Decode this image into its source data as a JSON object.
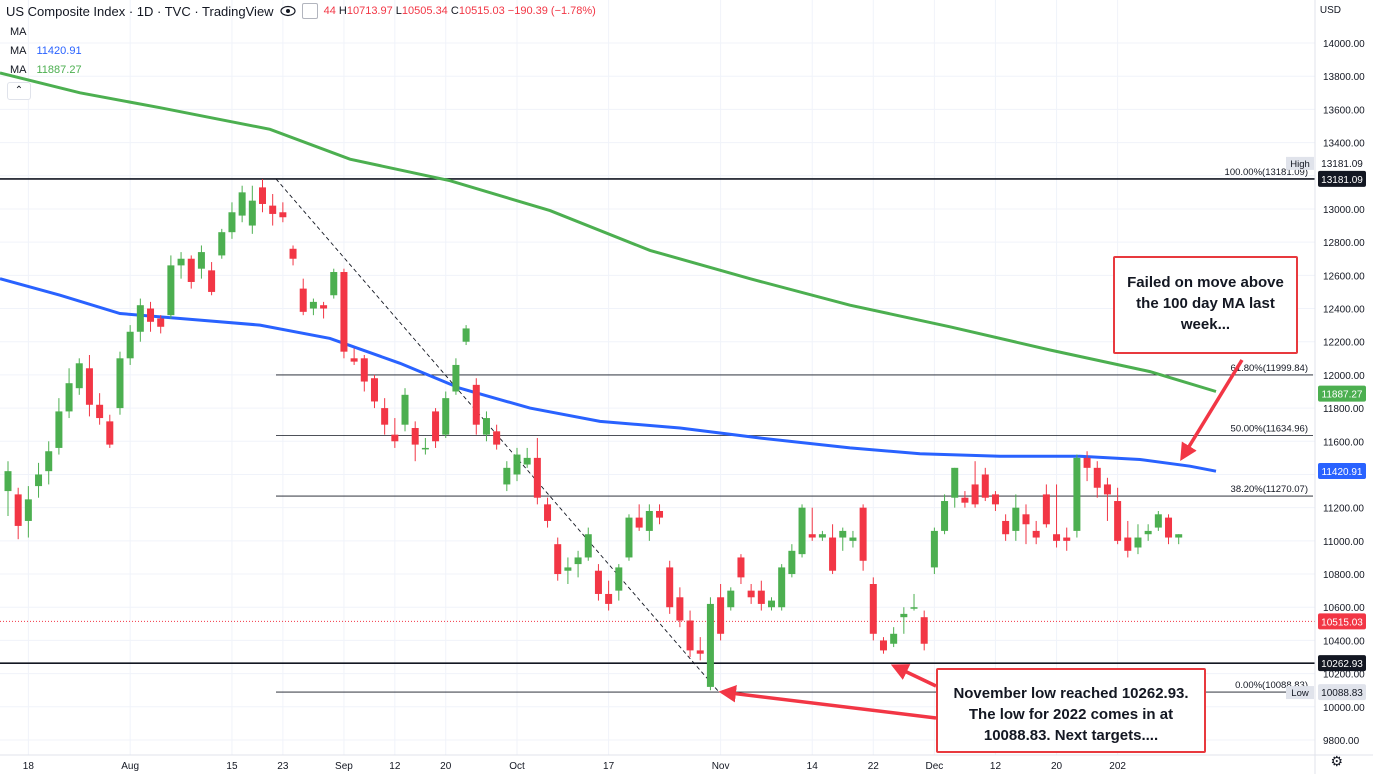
{
  "header": {
    "symbol": "US Composite Index · 1D · TVC · TradingView",
    "ohlc_prefix": "44",
    "high_label": "H",
    "high": "10713.97",
    "low_label": "L",
    "low": "10505.34",
    "close_label": "C",
    "close": "10515.03",
    "change": "−190.39 (−1.78%)",
    "eye_icon": "eye-icon",
    "settings_icon": "gear-icon"
  },
  "indicators": [
    {
      "label": "MA",
      "value": "",
      "color": "#787b86"
    },
    {
      "label": "MA",
      "value": "11420.91",
      "color": "#2962ff"
    },
    {
      "label": "MA",
      "value": "11887.27",
      "color": "#4caf50"
    }
  ],
  "currency": "USD",
  "callouts": [
    {
      "lines": [
        "Failed on move above",
        "the 100 day MA last",
        "week..."
      ]
    },
    {
      "lines": [
        "November low reached 10262.93.",
        "The low for 2022 comes in at",
        "10088.83.  Next targets...."
      ]
    }
  ],
  "chart_data": {
    "type": "candlestick",
    "y_axis": {
      "min": 9800,
      "max": 14000,
      "ticks": [
        9800,
        10000,
        10200,
        10400,
        10600,
        10800,
        11000,
        11200,
        11400,
        11600,
        11800,
        12000,
        12200,
        12400,
        12600,
        12800,
        13000,
        13200,
        13400,
        13600,
        13800,
        14000
      ]
    },
    "x_ticks": [
      {
        "label": "18",
        "index": 2
      },
      {
        "label": "Aug",
        "index": 12
      },
      {
        "label": "15",
        "index": 22
      },
      {
        "label": "23",
        "index": 27
      },
      {
        "label": "Sep",
        "index": 33
      },
      {
        "label": "12",
        "index": 38
      },
      {
        "label": "20",
        "index": 43
      },
      {
        "label": "Oct",
        "index": 50
      },
      {
        "label": "17",
        "index": 59
      },
      {
        "label": "Nov",
        "index": 70
      },
      {
        "label": "14",
        "index": 79
      },
      {
        "label": "22",
        "index": 85
      },
      {
        "label": "Dec",
        "index": 91
      },
      {
        "label": "12",
        "index": 97
      },
      {
        "label": "20",
        "index": 103
      },
      {
        "label": "202",
        "index": 109
      }
    ],
    "candles": [
      [
        11300,
        11480,
        11150,
        11420
      ],
      [
        11280,
        11320,
        11010,
        11090
      ],
      [
        11120,
        11330,
        11020,
        11250
      ],
      [
        11330,
        11470,
        11260,
        11400
      ],
      [
        11420,
        11600,
        11340,
        11540
      ],
      [
        11560,
        11860,
        11520,
        11780
      ],
      [
        11780,
        12040,
        11740,
        11950
      ],
      [
        11920,
        12100,
        11880,
        12070
      ],
      [
        12040,
        12120,
        11750,
        11820
      ],
      [
        11820,
        11890,
        11700,
        11740
      ],
      [
        11720,
        11760,
        11560,
        11580
      ],
      [
        11800,
        12140,
        11760,
        12100
      ],
      [
        12100,
        12300,
        12060,
        12260
      ],
      [
        12260,
        12460,
        12200,
        12420
      ],
      [
        12400,
        12440,
        12260,
        12320
      ],
      [
        12340,
        12360,
        12250,
        12290
      ],
      [
        12360,
        12720,
        12340,
        12660
      ],
      [
        12660,
        12740,
        12580,
        12700
      ],
      [
        12700,
        12720,
        12520,
        12560
      ],
      [
        12640,
        12780,
        12580,
        12740
      ],
      [
        12630,
        12680,
        12480,
        12500
      ],
      [
        12720,
        12880,
        12700,
        12860
      ],
      [
        12860,
        13040,
        12820,
        12980
      ],
      [
        12960,
        13140,
        12920,
        13100
      ],
      [
        12900,
        13140,
        12850,
        13050
      ],
      [
        13130,
        13180,
        12980,
        13030
      ],
      [
        13020,
        13090,
        12900,
        12970
      ],
      [
        12980,
        13040,
        12920,
        12950
      ],
      [
        12760,
        12780,
        12660,
        12700
      ],
      [
        12520,
        12580,
        12360,
        12380
      ],
      [
        12400,
        12460,
        12360,
        12440
      ],
      [
        12420,
        12440,
        12340,
        12400
      ],
      [
        12480,
        12640,
        12460,
        12620
      ],
      [
        12620,
        12640,
        12100,
        12140
      ],
      [
        12100,
        12160,
        12060,
        12080
      ],
      [
        12100,
        12120,
        11900,
        11960
      ],
      [
        11980,
        12000,
        11800,
        11840
      ],
      [
        11800,
        11860,
        11640,
        11700
      ],
      [
        11640,
        11740,
        11560,
        11600
      ],
      [
        11700,
        11920,
        11660,
        11880
      ],
      [
        11680,
        11720,
        11480,
        11580
      ],
      [
        11560,
        11620,
        11520,
        11560
      ],
      [
        11780,
        11800,
        11560,
        11600
      ],
      [
        11640,
        11900,
        11620,
        11860
      ],
      [
        11900,
        12100,
        11880,
        12060
      ],
      [
        12200,
        12300,
        12180,
        12280
      ],
      [
        11940,
        11980,
        11640,
        11700
      ],
      [
        11640,
        11780,
        11600,
        11740
      ],
      [
        11660,
        11700,
        11550,
        11580
      ],
      [
        11340,
        11480,
        11300,
        11440
      ],
      [
        11400,
        11560,
        11360,
        11520
      ],
      [
        11460,
        11560,
        11440,
        11500
      ],
      [
        11500,
        11620,
        11220,
        11260
      ],
      [
        11220,
        11260,
        11080,
        11120
      ],
      [
        10980,
        11020,
        10760,
        10800
      ],
      [
        10820,
        10900,
        10740,
        10840
      ],
      [
        10860,
        10940,
        10780,
        10900
      ],
      [
        10900,
        11080,
        10880,
        11040
      ],
      [
        10820,
        10860,
        10640,
        10680
      ],
      [
        10680,
        10760,
        10580,
        10620
      ],
      [
        10700,
        10860,
        10640,
        10840
      ],
      [
        10900,
        11160,
        10880,
        11140
      ],
      [
        11140,
        11220,
        11060,
        11080
      ],
      [
        11060,
        11220,
        11000,
        11180
      ],
      [
        11180,
        11220,
        11100,
        11140
      ],
      [
        10840,
        10880,
        10560,
        10600
      ],
      [
        10660,
        10720,
        10480,
        10520
      ],
      [
        10520,
        10580,
        10300,
        10340
      ],
      [
        10340,
        10420,
        10280,
        10320
      ],
      [
        10120,
        10660,
        10100,
        10620
      ],
      [
        10660,
        10740,
        10400,
        10440
      ],
      [
        10600,
        10720,
        10580,
        10700
      ],
      [
        10900,
        10920,
        10740,
        10780
      ],
      [
        10700,
        10740,
        10620,
        10660
      ],
      [
        10700,
        10760,
        10580,
        10620
      ],
      [
        10600,
        10660,
        10580,
        10640
      ],
      [
        10600,
        10860,
        10580,
        10840
      ],
      [
        10800,
        10980,
        10780,
        10940
      ],
      [
        10920,
        11220,
        10900,
        11200
      ],
      [
        11040,
        11200,
        11000,
        11020
      ],
      [
        11020,
        11060,
        11000,
        11040
      ],
      [
        11020,
        11100,
        10800,
        10820
      ],
      [
        11020,
        11080,
        10940,
        11060
      ],
      [
        11000,
        11060,
        10960,
        11020
      ],
      [
        11200,
        11220,
        10820,
        10880
      ],
      [
        10740,
        10780,
        10400,
        10440
      ],
      [
        10400,
        10420,
        10320,
        10340
      ],
      [
        10380,
        10480,
        10360,
        10440
      ],
      [
        10540,
        10600,
        10440,
        10560
      ],
      [
        10600,
        10680,
        10580,
        10600
      ],
      [
        10540,
        10580,
        10340,
        10380
      ],
      [
        10840,
        11080,
        10800,
        11060
      ],
      [
        11060,
        11280,
        11040,
        11240
      ],
      [
        11260,
        11440,
        11200,
        11440
      ],
      [
        11260,
        11300,
        11200,
        11230
      ],
      [
        11340,
        11480,
        11200,
        11220
      ],
      [
        11400,
        11440,
        11240,
        11260
      ],
      [
        11280,
        11300,
        11180,
        11220
      ],
      [
        11120,
        11160,
        11000,
        11040
      ],
      [
        11060,
        11280,
        11000,
        11200
      ],
      [
        11160,
        11220,
        10980,
        11100
      ],
      [
        11060,
        11120,
        10980,
        11020
      ],
      [
        11280,
        11340,
        11080,
        11100
      ],
      [
        11040,
        11340,
        10960,
        11000
      ],
      [
        11020,
        11080,
        10940,
        11000
      ],
      [
        11060,
        11520,
        11020,
        11500
      ],
      [
        11500,
        11540,
        11360,
        11440
      ],
      [
        11440,
        11480,
        11260,
        11320
      ],
      [
        11340,
        11380,
        11120,
        11280
      ],
      [
        11240,
        11320,
        10980,
        11000
      ],
      [
        11020,
        11120,
        10900,
        10940
      ],
      [
        10960,
        11100,
        10920,
        11020
      ],
      [
        11040,
        11100,
        11000,
        11060
      ],
      [
        11080,
        11180,
        11060,
        11160
      ],
      [
        11140,
        11160,
        10980,
        11020
      ],
      [
        11020,
        11040,
        10980,
        11040
      ]
    ],
    "ma_100": {
      "name": "MA",
      "color": "#2962ff",
      "last": 11420.91
    },
    "ma_200": {
      "name": "MA",
      "color": "#4caf50",
      "last": 11887.27
    },
    "fib_levels": [
      {
        "label": "100.00%(13181.09)",
        "value": 13181.09
      },
      {
        "label": "61.80%(11999.84)",
        "value": 11999.84
      },
      {
        "label": "50.00%(11634.96)",
        "value": 11634.96
      },
      {
        "label": "38.20%(11270.07)",
        "value": 11270.07
      },
      {
        "label": "0.00%(10088.83)",
        "value": 10088.83
      }
    ],
    "horizontal_lines": [
      13181.09,
      10262.93
    ],
    "last_price": 10515.03,
    "price_labels": [
      {
        "text": "13181.09",
        "value": 13181.09,
        "bg": "#131722",
        "fg": "#ffffff"
      },
      {
        "text": "11887.27",
        "value": 11887.27,
        "bg": "#4caf50",
        "fg": "#ffffff"
      },
      {
        "text": "11420.91",
        "value": 11420.91,
        "bg": "#2962ff",
        "fg": "#ffffff"
      },
      {
        "text": "10515.03",
        "value": 10515.03,
        "bg": "#f23645",
        "fg": "#ffffff"
      },
      {
        "text": "10262.93",
        "value": 10262.93,
        "bg": "#131722",
        "fg": "#ffffff"
      },
      {
        "text": "10088.83",
        "value": 10088.83,
        "bg": "#e0e3eb",
        "fg": "#131722"
      }
    ],
    "high_marker": {
      "label": "High",
      "value": 13181.09,
      "text": "13181.09"
    },
    "low_marker": {
      "label": "Low",
      "value": 10088.83,
      "text": "10088.83"
    },
    "colors": {
      "up": "#4caf50",
      "down": "#f23645"
    }
  }
}
